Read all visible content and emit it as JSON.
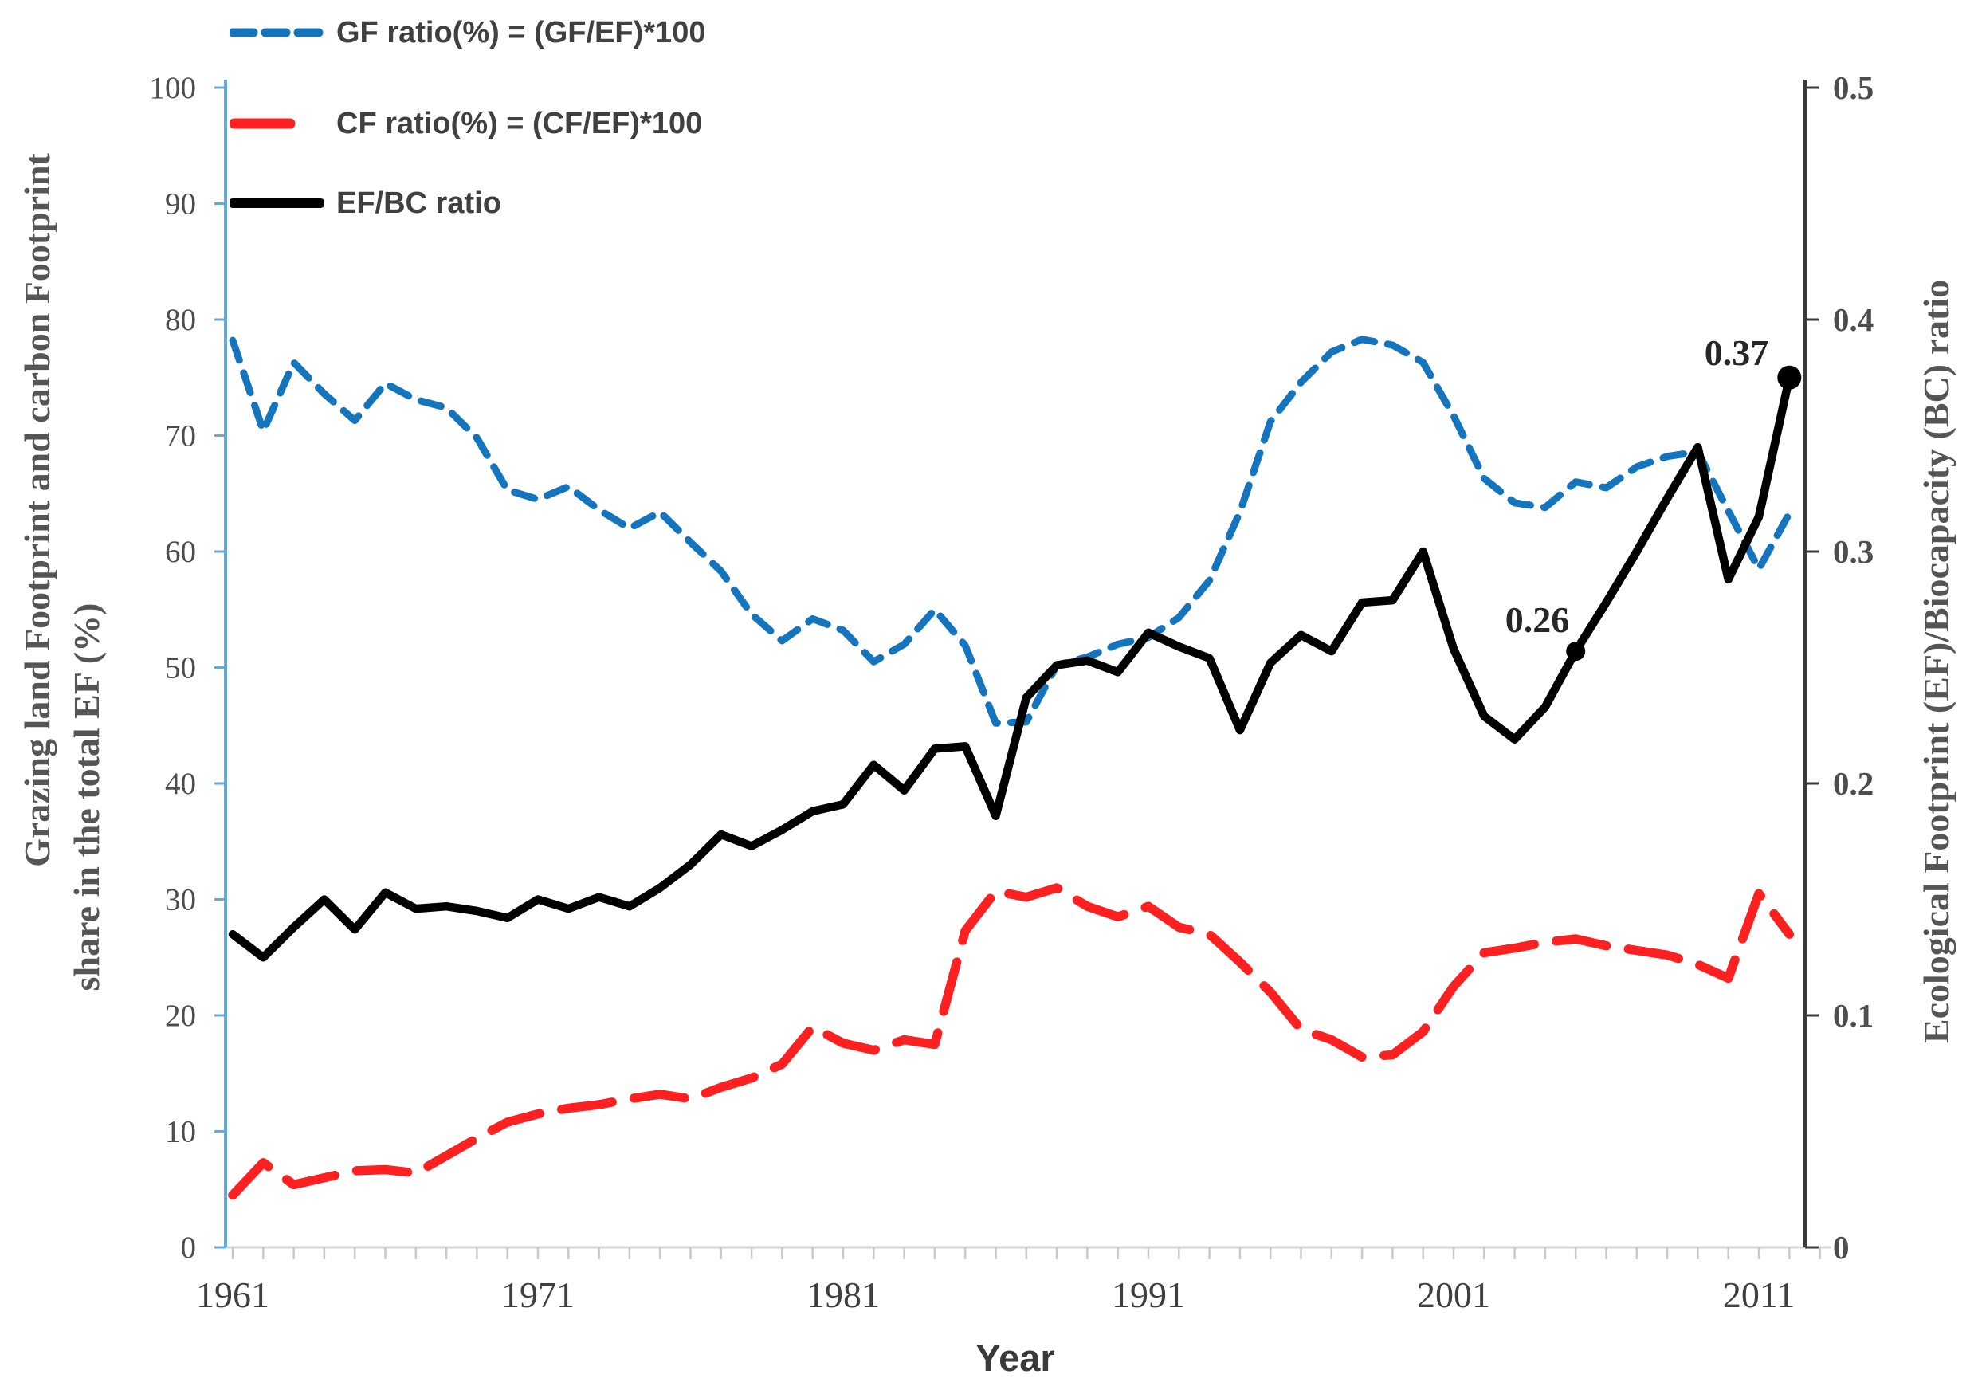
{
  "chart_data": {
    "type": "line",
    "title": "",
    "xlabel": "Year",
    "ylabel_left_line1": "Grazing land Footprint and carbon Footprint",
    "ylabel_left_line2": "share in the total EF (%)",
    "ylabel_right": "Ecological Footprint (EF)/Biocapacity (BC) ratio",
    "legend_position": "top-left",
    "grid": false,
    "ylim_left": [
      0,
      100
    ],
    "ylim_right": [
      0,
      0.5
    ],
    "yticks_left": [
      0,
      10,
      20,
      30,
      40,
      50,
      60,
      70,
      80,
      90,
      100
    ],
    "yticks_right": [
      0,
      0.1,
      0.2,
      0.3,
      0.4,
      0.5
    ],
    "x_ticks": [
      1961,
      1971,
      1981,
      1991,
      2001,
      2011
    ],
    "xlim": [
      1961,
      2013
    ],
    "years": [
      1961,
      1962,
      1963,
      1964,
      1965,
      1966,
      1967,
      1968,
      1969,
      1970,
      1971,
      1972,
      1973,
      1974,
      1975,
      1976,
      1977,
      1978,
      1979,
      1980,
      1981,
      1982,
      1983,
      1984,
      1985,
      1986,
      1987,
      1988,
      1989,
      1990,
      1991,
      1992,
      1993,
      1994,
      1995,
      1996,
      1997,
      1998,
      1999,
      2000,
      2001,
      2002,
      2003,
      2004,
      2005,
      2006,
      2007,
      2008,
      2009,
      2010,
      2011,
      2012
    ],
    "series": [
      {
        "name": "GF ratio(%) = (GF/EF)*100",
        "axis": "left",
        "color": "#1475BE",
        "style": "dashed-short",
        "values": [
          78.2,
          70.4,
          76.3,
          73.6,
          71.3,
          74.5,
          73.1,
          72.4,
          69.8,
          65.3,
          64.5,
          65.6,
          63.6,
          62.0,
          63.4,
          60.8,
          58.3,
          54.6,
          52.3,
          54.2,
          53.2,
          50.5,
          52.0,
          55.0,
          51.9,
          45.2,
          45.3,
          50.2,
          50.9,
          52.0,
          52.6,
          54.3,
          57.5,
          63.4,
          71.2,
          74.6,
          77.2,
          78.3,
          77.8,
          76.3,
          71.7,
          66.3,
          64.2,
          63.8,
          66.0,
          65.5,
          67.3,
          68.2,
          68.6,
          63.5,
          58.5,
          63.3
        ]
      },
      {
        "name": "CF ratio(%) = (CF/EF)*100",
        "axis": "left",
        "color": "#FC2020",
        "style": "dashed-long",
        "values": [
          4.5,
          7.3,
          5.4,
          6.0,
          6.6,
          6.7,
          6.4,
          7.9,
          9.4,
          10.8,
          11.5,
          12.0,
          12.3,
          12.8,
          13.2,
          12.8,
          13.8,
          14.6,
          15.8,
          19.0,
          17.6,
          17.0,
          17.9,
          17.5,
          27.3,
          30.7,
          30.2,
          31.0,
          29.4,
          28.5,
          29.4,
          27.6,
          27.0,
          24.6,
          22.0,
          18.8,
          17.9,
          16.4,
          16.6,
          18.6,
          22.5,
          25.4,
          25.8,
          26.3,
          26.6,
          26.0,
          25.6,
          25.2,
          24.4,
          23.2,
          30.5,
          27.0
        ]
      },
      {
        "name": "EF/BC ratio",
        "axis": "right",
        "color": "#000000",
        "style": "solid",
        "values": [
          0.135,
          0.125,
          0.138,
          0.15,
          0.137,
          0.153,
          0.146,
          0.147,
          0.145,
          0.142,
          0.15,
          0.146,
          0.151,
          0.147,
          0.155,
          0.165,
          0.178,
          0.173,
          0.18,
          0.188,
          0.191,
          0.208,
          0.197,
          0.215,
          0.216,
          0.186,
          0.237,
          0.251,
          0.253,
          0.248,
          0.265,
          0.259,
          0.254,
          0.223,
          0.252,
          0.264,
          0.257,
          0.278,
          0.279,
          0.3,
          0.258,
          0.229,
          0.219,
          0.233,
          0.257,
          0.278,
          0.3,
          0.323,
          0.345,
          0.288,
          0.315,
          0.375
        ]
      }
    ],
    "annotations": [
      {
        "text": "0.26",
        "year": 2005,
        "value": 0.257
      },
      {
        "text": "0.37",
        "year": 2012,
        "value": 0.375
      }
    ]
  },
  "colors": {
    "left_axis": "#64A9DC",
    "right_axis": "#3A3A3A",
    "bottom_axis": "#D6D6D6",
    "bottom_ticks": "#C9C9C9",
    "gf_line": "#1475BE",
    "cf_line": "#FC2020",
    "ef_bc_line": "#000000"
  }
}
